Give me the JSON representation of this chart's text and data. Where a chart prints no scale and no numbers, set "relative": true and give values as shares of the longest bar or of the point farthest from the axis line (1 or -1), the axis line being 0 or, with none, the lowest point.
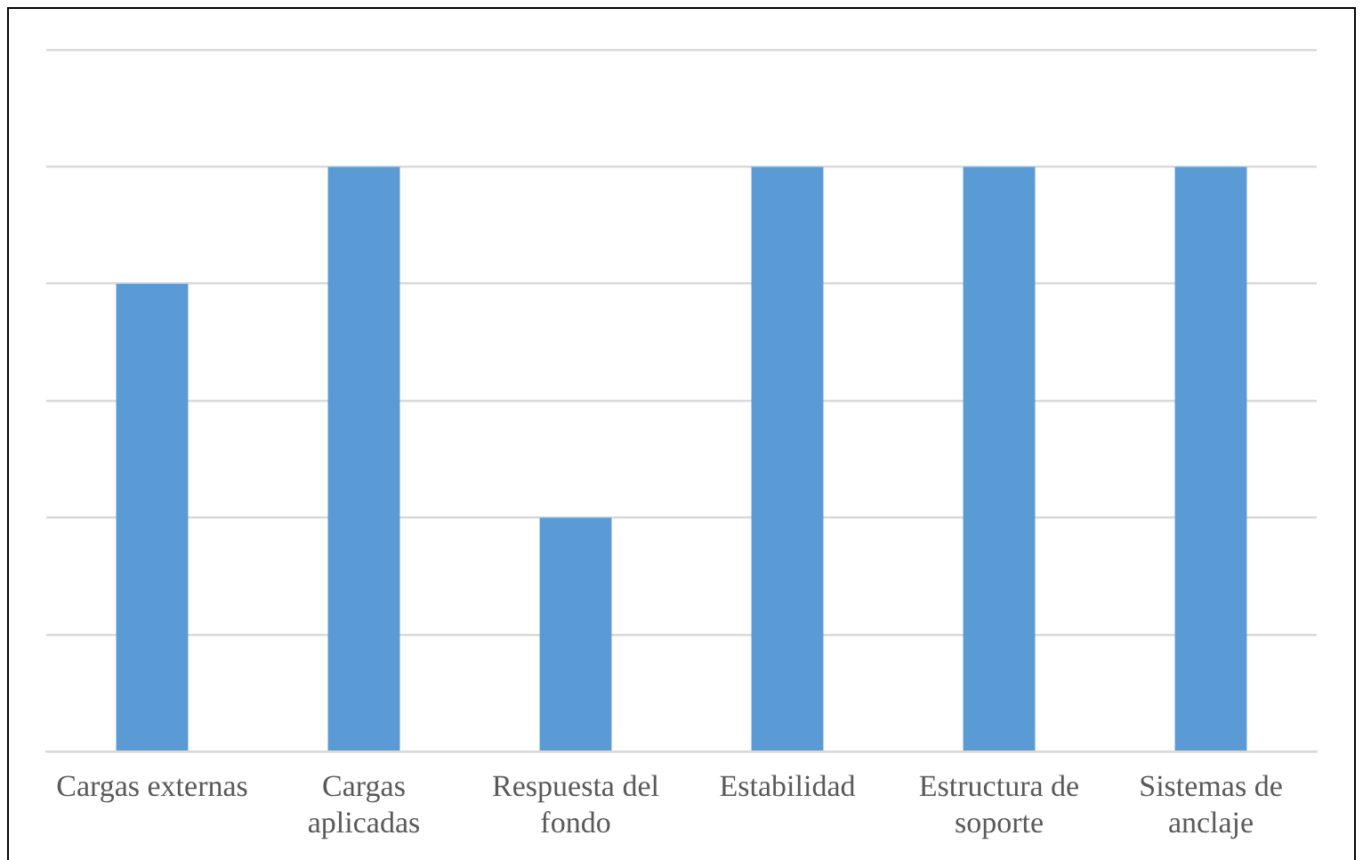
{
  "chart_data": {
    "type": "bar",
    "relative": true,
    "categories": [
      "Cargas externas",
      "Cargas aplicadas",
      "Respuesta del fondo",
      "Estabilidad",
      "Estructura de soporte",
      "Sistemas de anclaje"
    ],
    "values": [
      0.8,
      1,
      0.4,
      1,
      1,
      1
    ],
    "color": "#5b9bd5",
    "grid": "y",
    "legend": false
  }
}
